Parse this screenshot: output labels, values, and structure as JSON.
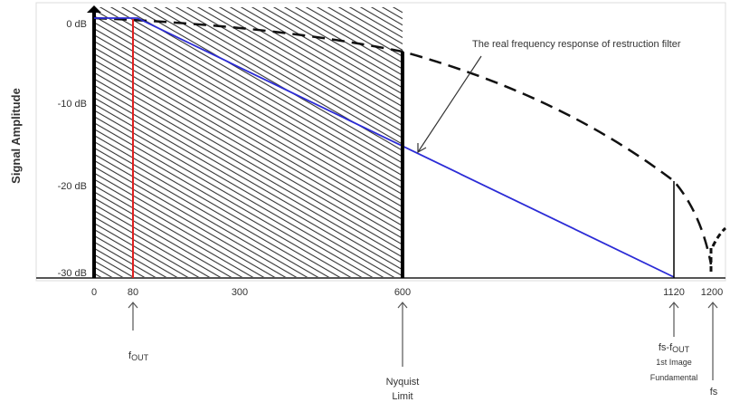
{
  "y_axis": {
    "title": "Signal Amplitude",
    "ticks": [
      "0 dB",
      "-10 dB",
      "-20 dB",
      "-30 dB"
    ]
  },
  "x_axis": {
    "ticks": [
      "0",
      "80",
      "300",
      "600",
      "1120",
      "1200"
    ]
  },
  "annotation": "The real frequency response of restruction filter",
  "markers": {
    "fout": {
      "main": "f",
      "sub": "OUT"
    },
    "nyquist": {
      "line1": "Nyquist",
      "line2": "Limit"
    },
    "image": {
      "main": "fs-f",
      "sub": "OUT",
      "line2": "1st Image",
      "line3": "Fundamental"
    },
    "fs": "fs"
  },
  "colors": {
    "filter_response": "#2b2bd6",
    "fout_line": "#e02020",
    "hatch": "#333333"
  }
}
